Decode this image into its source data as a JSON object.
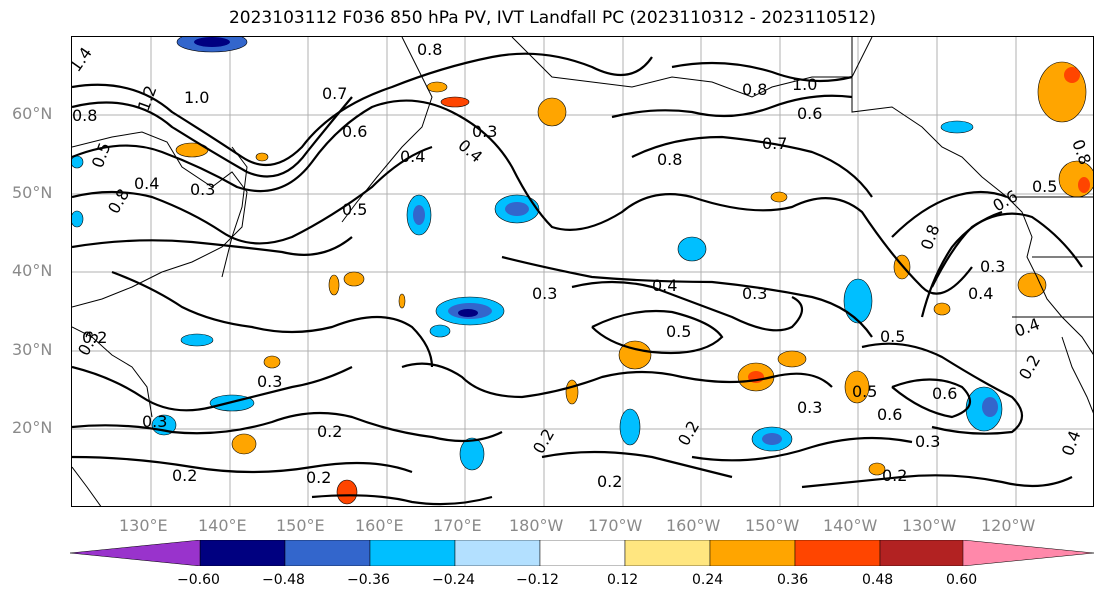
{
  "title": "2023103112 F036 850 hPa PV, IVT Landfall PC (2023110312 - 2023110512)",
  "lat_labels": [
    "60°N",
    "50°N",
    "40°N",
    "30°N",
    "20°N"
  ],
  "lon_labels": [
    "130°E",
    "140°E",
    "150°E",
    "160°E",
    "170°E",
    "180°W",
    "170°W",
    "160°W",
    "150°W",
    "140°W",
    "130°W",
    "120°W"
  ],
  "contour_labels": [
    "1.4",
    "1.2",
    "1.0",
    "0.8",
    "0.5",
    "0.7",
    "0.8",
    "0.3",
    "0.4",
    "0.3",
    "0.6",
    "0.8",
    "0.5",
    "1.0",
    "0.8",
    "0.6",
    "0.7",
    "0.8",
    "0.3",
    "0.4",
    "0.5",
    "0.4",
    "0.3",
    "0.5",
    "0.3",
    "0.4",
    "0.5",
    "0.6",
    "0.6",
    "0.3",
    "0.2",
    "0.3",
    "0.2",
    "0.3",
    "0.2",
    "0.2",
    "0.2",
    "0.2",
    "0.2",
    "0.3",
    "0.2",
    "0.4",
    "0.8",
    "0.3",
    "0.4",
    "0.2",
    "0.5",
    "0.6",
    "0.8",
    "0.4"
  ],
  "colorbar": {
    "colors": [
      "#9933cc",
      "#000080",
      "#3366cc",
      "#00bfff",
      "#b3e0ff",
      "#ffffff",
      "#ffe680",
      "#ffa500",
      "#ff4500",
      "#b22222",
      "#ff88aa"
    ],
    "ticks": [
      "−0.60",
      "−0.48",
      "−0.36",
      "−0.24",
      "−0.12",
      "0.12",
      "0.24",
      "0.36",
      "0.48",
      "0.60"
    ]
  }
}
